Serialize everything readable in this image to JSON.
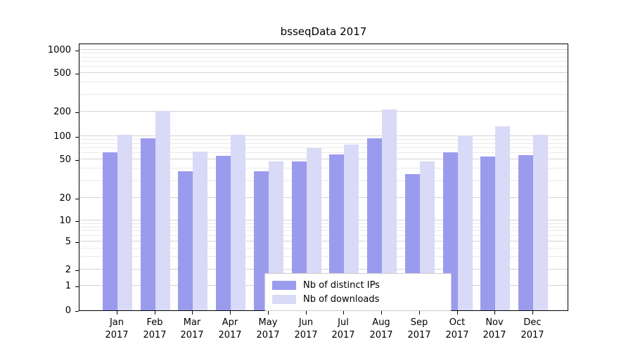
{
  "title": "bsseqData 2017",
  "chart_data": {
    "type": "bar",
    "title": "bsseqData 2017",
    "scale": "log-like",
    "months": [
      "Jan",
      "Feb",
      "Mar",
      "Apr",
      "May",
      "Jun",
      "Jul",
      "Aug",
      "Sep",
      "Oct",
      "Nov",
      "Dec"
    ],
    "year": "2017",
    "categories": [
      "Jan 2017",
      "Feb 2017",
      "Mar 2017",
      "Apr 2017",
      "May 2017",
      "Jun 2017",
      "Jul 2017",
      "Aug 2017",
      "Sep 2017",
      "Oct 2017",
      "Nov 2017",
      "Dec 2017"
    ],
    "series": [
      {
        "name": "Nb of distinct IPs",
        "color": "#9b9bee",
        "values": [
          62,
          93,
          38,
          56,
          38,
          48,
          58,
          93,
          35,
          62,
          55,
          57
        ]
      },
      {
        "name": "Nb of downloads",
        "color": "#d9d9f8",
        "values": [
          105,
          203,
          63,
          103,
          48,
          70,
          78,
          210,
          48,
          102,
          133,
          103
        ]
      }
    ],
    "y_ticks": [
      0,
      1,
      2,
      5,
      10,
      20,
      50,
      100,
      200,
      500,
      1000
    ],
    "minor_gridlines": [
      3,
      4,
      6,
      7,
      8,
      9,
      30,
      40,
      60,
      70,
      80,
      90,
      300,
      400,
      600,
      700,
      800,
      900
    ],
    "ylim": [
      0,
      1000
    ],
    "grid": "horizontal",
    "legend_position": "bottom-center"
  },
  "colors": {
    "bar_ips": "#9b9bee",
    "bar_downloads": "#d9d9f8",
    "gridline": "#d3d3d3",
    "gridline_minor": "#e9e9e9",
    "axis": "#000000"
  }
}
